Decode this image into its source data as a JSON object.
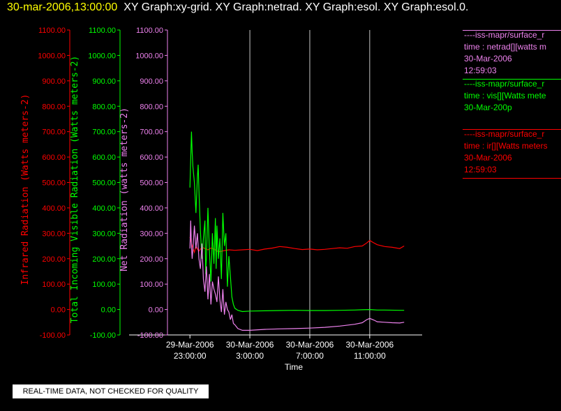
{
  "header": {
    "datetime": "30-mar-2006,13:00:00",
    "graphs": "XY Graph:xy-grid.  XY Graph:netrad.  XY Graph:esol.  XY Graph:esol.0."
  },
  "legend": [
    {
      "color": "#ee82ee",
      "lines": [
        "----iss-mapr/surface_r",
        "time : netrad[][watts m",
        "30-Mar-2006",
        "12:59:03"
      ]
    },
    {
      "color": "#00ff00",
      "lines": [
        "----iss-mapr/surface_r",
        "time : vis[][Watts mete",
        "30-Mar-200p"
      ]
    },
    {
      "color": "#ff0000",
      "lines": [
        "----iss-mapr/surface_r",
        "time : ir[][Watts meters",
        "30-Mar-2006",
        "12:59:03"
      ]
    }
  ],
  "notice": "REAL-TIME DATA, NOT CHECKED FOR QUALITY",
  "chart_data": {
    "type": "line",
    "xlabel": "Time",
    "x_ticks": [
      {
        "t": 0,
        "line1": "29-Mar-2006",
        "line2": "23:00:00"
      },
      {
        "t": 4,
        "line1": "30-Mar-2006",
        "line2": "3:00:00"
      },
      {
        "t": 8,
        "line1": "30-Mar-2006",
        "line2": "7:00:00"
      },
      {
        "t": 12,
        "line1": "30-Mar-2006",
        "line2": "11:00:00"
      }
    ],
    "xlim": [
      -1.5,
      15.5
    ],
    "grid": true,
    "axes": [
      {
        "id": "ir",
        "label": "Infrared Radiation (Watts meters-2)",
        "color": "#ff0000",
        "ylim": [
          -100,
          1100
        ]
      },
      {
        "id": "vis",
        "label": "Total Incoming Visible Radiation (Watts meters-2)",
        "color": "#00ff00",
        "ylim": [
          -100,
          1100
        ]
      },
      {
        "id": "net",
        "label": "Net Radiation (watts meters-2)",
        "color": "#ee82ee",
        "ylim": [
          -100,
          1100
        ]
      }
    ],
    "y_ticks": [
      -100,
      0,
      100,
      200,
      300,
      400,
      500,
      600,
      700,
      800,
      900,
      1000,
      1100
    ],
    "series": [
      {
        "axis": "ir",
        "color": "#ff0000",
        "x": [
          0.0,
          0.1,
          0.2,
          0.3,
          0.4,
          0.5,
          0.6,
          0.8,
          1.0,
          1.2,
          1.4,
          1.6,
          1.8,
          2.0,
          2.3,
          2.6,
          3.0,
          3.5,
          4.0,
          4.5,
          5.0,
          5.5,
          6.0,
          6.5,
          7.0,
          7.5,
          8.0,
          8.5,
          9.0,
          9.5,
          10.0,
          10.5,
          11.0,
          11.5,
          11.8,
          12.0,
          12.2,
          12.5,
          13.0,
          13.5,
          14.0,
          14.3
        ],
        "y": [
          285,
          260,
          240,
          225,
          250,
          238,
          230,
          245,
          240,
          235,
          242,
          238,
          230,
          228,
          232,
          235,
          233,
          235,
          237,
          232,
          238,
          242,
          248,
          245,
          240,
          236,
          238,
          235,
          237,
          240,
          243,
          241,
          248,
          250,
          262,
          272,
          265,
          255,
          248,
          245,
          240,
          250
        ]
      },
      {
        "axis": "vis",
        "color": "#00ff00",
        "x": [
          0.0,
          0.1,
          0.15,
          0.2,
          0.3,
          0.4,
          0.5,
          0.55,
          0.6,
          0.7,
          0.8,
          0.9,
          1.0,
          1.05,
          1.1,
          1.2,
          1.3,
          1.4,
          1.5,
          1.6,
          1.7,
          1.75,
          1.8,
          1.9,
          2.0,
          2.1,
          2.2,
          2.3,
          2.4,
          2.5,
          2.6,
          2.7,
          2.8,
          2.9,
          3.0,
          3.2,
          3.5,
          4.0,
          5.0,
          6.0,
          7.0,
          8.0,
          9.0,
          10.0,
          11.0,
          11.5,
          12.0,
          12.5,
          13.0,
          14.0,
          14.3
        ],
        "y": [
          480,
          700,
          620,
          560,
          500,
          380,
          520,
          570,
          470,
          310,
          200,
          280,
          350,
          140,
          200,
          400,
          230,
          110,
          300,
          180,
          360,
          160,
          330,
          200,
          280,
          120,
          380,
          250,
          300,
          90,
          210,
          130,
          50,
          20,
          5,
          -3,
          -8,
          -6,
          -5,
          -4,
          -3,
          -4,
          -4,
          -3,
          -2,
          -1,
          0,
          -2,
          -2,
          -3,
          -3
        ]
      },
      {
        "axis": "net",
        "color": "#ee82ee",
        "x": [
          0.0,
          0.05,
          0.1,
          0.15,
          0.2,
          0.3,
          0.4,
          0.5,
          0.6,
          0.7,
          0.8,
          0.9,
          1.0,
          1.1,
          1.2,
          1.3,
          1.4,
          1.5,
          1.6,
          1.7,
          1.8,
          1.9,
          2.0,
          2.1,
          2.2,
          2.3,
          2.4,
          2.5,
          2.6,
          2.7,
          2.8,
          2.9,
          3.0,
          3.2,
          3.5,
          4.0,
          5.0,
          6.0,
          7.0,
          8.0,
          9.0,
          10.0,
          11.0,
          11.5,
          11.8,
          12.0,
          12.3,
          12.5,
          13.0,
          13.5,
          14.0,
          14.3
        ],
        "y": [
          240,
          350,
          250,
          200,
          240,
          330,
          240,
          300,
          200,
          160,
          260,
          120,
          70,
          170,
          40,
          140,
          20,
          110,
          80,
          60,
          30,
          130,
          40,
          -10,
          80,
          -20,
          30,
          0,
          -10,
          -40,
          -20,
          -55,
          -60,
          -75,
          -82,
          -82,
          -78,
          -76,
          -75,
          -73,
          -70,
          -65,
          -58,
          -52,
          -40,
          -35,
          -42,
          -48,
          -50,
          -52,
          -53,
          -50
        ]
      }
    ]
  }
}
